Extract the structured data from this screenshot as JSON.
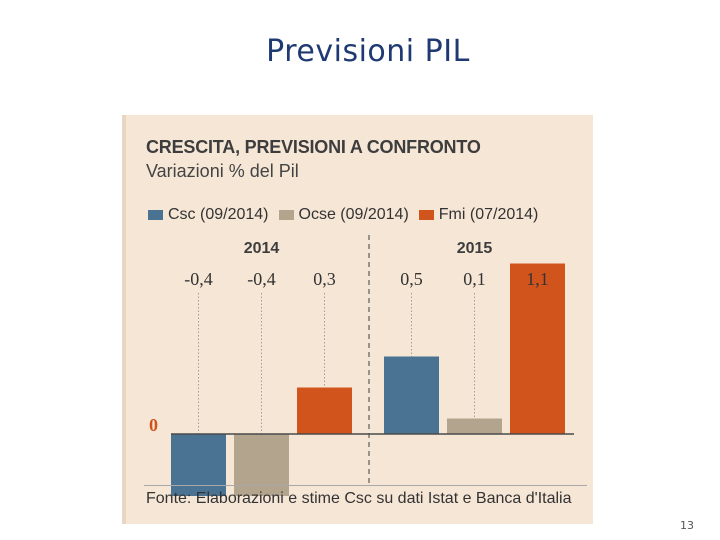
{
  "slide": {
    "title": "Previsioni PIL",
    "page_number": "13"
  },
  "chart_data": {
    "type": "bar",
    "title": "CRESCITA, PREVISIONI A CONFRONTO",
    "subtitle": "Variazioni % del Pil",
    "source": "Fonte: Elaborazioni e stime Csc su dati Istat e Banca d'Italia",
    "zero_label": "0",
    "groups": [
      "2014",
      "2015"
    ],
    "series": [
      {
        "name": "Csc (09/2014)",
        "color": "#4a7293",
        "values": [
          -0.4,
          0.5
        ]
      },
      {
        "name": "Ocse (09/2014)",
        "color": "#b3a48e",
        "values": [
          -0.4,
          0.1
        ]
      },
      {
        "name": "Fmi (07/2014)",
        "color": "#d0541c",
        "values": [
          0.3,
          1.1
        ]
      }
    ],
    "value_labels": [
      [
        "-0,4",
        "-0,4",
        "0,3"
      ],
      [
        "0,5",
        "0,1",
        "1,1"
      ]
    ],
    "ylim": [
      -0.45,
      1.15
    ],
    "grid": false,
    "legend_position": "top"
  }
}
